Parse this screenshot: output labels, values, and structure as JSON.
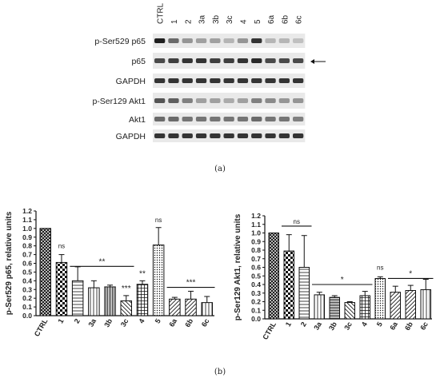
{
  "blot": {
    "lanes": [
      "CTRL",
      "1",
      "2",
      "3a",
      "3b",
      "3c",
      "4",
      "5",
      "6a",
      "6b",
      "6c"
    ],
    "rows": [
      {
        "label": "p-Ser529 p65",
        "intensity": [
          0.95,
          0.6,
          0.4,
          0.35,
          0.35,
          0.25,
          0.4,
          0.85,
          0.25,
          0.25,
          0.2
        ]
      },
      {
        "label": "p65",
        "intensity": [
          0.75,
          0.8,
          0.85,
          0.85,
          0.8,
          0.8,
          0.85,
          0.9,
          0.75,
          0.75,
          0.75
        ]
      },
      {
        "label": "GAPDH",
        "intensity": [
          0.85,
          0.85,
          0.85,
          0.85,
          0.85,
          0.85,
          0.85,
          0.85,
          0.85,
          0.85,
          0.85
        ]
      },
      {
        "label": "p-Ser129 Akt1",
        "intensity": [
          0.7,
          0.65,
          0.5,
          0.35,
          0.35,
          0.3,
          0.35,
          0.5,
          0.45,
          0.4,
          0.4
        ]
      },
      {
        "label": "Akt1",
        "intensity": [
          0.6,
          0.6,
          0.55,
          0.55,
          0.55,
          0.55,
          0.55,
          0.6,
          0.55,
          0.55,
          0.5
        ]
      },
      {
        "label": "GAPDH",
        "intensity": [
          0.85,
          0.85,
          0.85,
          0.85,
          0.85,
          0.85,
          0.85,
          0.85,
          0.85,
          0.85,
          0.85
        ]
      }
    ]
  },
  "captions": {
    "a": "(a)",
    "b": "(b)"
  },
  "chart_data": [
    {
      "type": "bar",
      "ylabel": "p-Ser529 p65, relative units",
      "ylim": [
        0,
        1.2
      ],
      "yticks": [
        "0.0",
        "0.1",
        "0.2",
        "0.3",
        "0.4",
        "0.5",
        "0.6",
        "0.7",
        "0.8",
        "0.9",
        "1.0",
        "1.1",
        "1.2"
      ],
      "categories": [
        "CTRL",
        "1",
        "2",
        "3a",
        "3b",
        "3c",
        "4",
        "5",
        "6a",
        "6b",
        "6c"
      ],
      "values": [
        1.0,
        0.61,
        0.4,
        0.32,
        0.33,
        0.17,
        0.36,
        0.81,
        0.19,
        0.19,
        0.15
      ],
      "errors": [
        0,
        0.09,
        0.16,
        0.08,
        0.02,
        0.06,
        0.04,
        0.2,
        0.02,
        0.09,
        0.07
      ],
      "patterns": [
        "cross",
        "check",
        "hline",
        "vline",
        "vline-dense",
        "diag-left",
        "grid",
        "dots",
        "diag-right",
        "diag-right",
        "vline"
      ],
      "annotations": [
        {
          "text": "ns",
          "bars": [
            1
          ],
          "level": 0.745
        },
        {
          "text": "**",
          "bars": [
            2,
            5
          ],
          "level": 0.565
        },
        {
          "text": "***",
          "bars": [
            5
          ],
          "level": 0.255
        },
        {
          "text": "**",
          "bars": [
            6
          ],
          "level": 0.425
        },
        {
          "text": "ns",
          "bars": [
            7
          ],
          "level": 1.045
        },
        {
          "text": "***",
          "bars": [
            8,
            10
          ],
          "level": 0.325
        }
      ]
    },
    {
      "type": "bar",
      "ylabel": "p-Ser129 Akt1, relative units",
      "ylim": [
        0,
        1.2
      ],
      "yticks": [
        "0.0",
        "0.1",
        "0.2",
        "0.3",
        "0.4",
        "0.5",
        "0.6",
        "0.7",
        "0.8",
        "0.9",
        "1.0",
        "1.1",
        "1.2"
      ],
      "categories": [
        "CTRL",
        "1",
        "2",
        "3a",
        "3b",
        "3c",
        "4",
        "5",
        "6a",
        "6b",
        "6c"
      ],
      "values": [
        1.0,
        0.79,
        0.6,
        0.28,
        0.25,
        0.19,
        0.27,
        0.47,
        0.31,
        0.33,
        0.34
      ],
      "errors": [
        0,
        0.19,
        0.37,
        0.03,
        0.02,
        0.01,
        0.05,
        0.02,
        0.07,
        0.06,
        0.12
      ],
      "patterns": [
        "cross",
        "check",
        "hline",
        "vline",
        "hline-dense",
        "diag-left",
        "grid",
        "dots",
        "diag-right",
        "diag-right",
        "vline"
      ],
      "annotations": [
        {
          "text": "ns",
          "bars": [
            1,
            2
          ],
          "level": 1.08
        },
        {
          "text": "*",
          "bars": [
            3,
            6
          ],
          "level": 0.4
        },
        {
          "text": "ns",
          "bars": [
            7
          ],
          "level": 0.545
        },
        {
          "text": "*",
          "bars": [
            8,
            10
          ],
          "level": 0.47
        }
      ]
    }
  ]
}
